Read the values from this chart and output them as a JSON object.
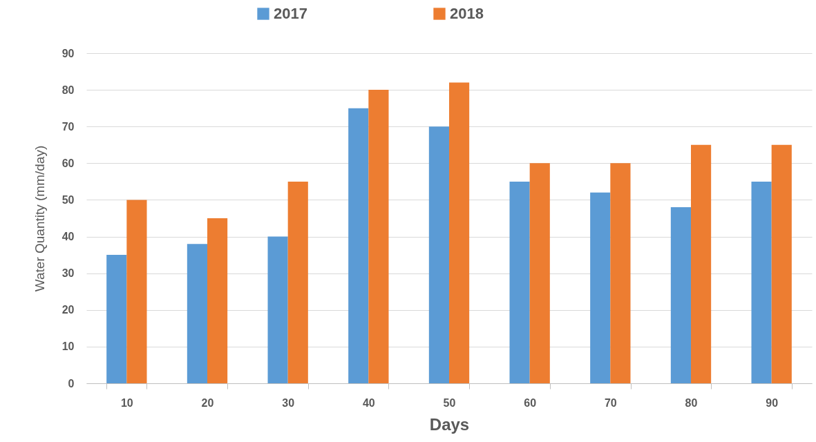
{
  "chart_data": {
    "type": "bar",
    "xlabel": "Days",
    "ylabel": "Water Quantity (mm/day)",
    "categories": [
      "10",
      "20",
      "30",
      "40",
      "50",
      "60",
      "70",
      "80",
      "90"
    ],
    "series": [
      {
        "name": "2017",
        "color": "#5b9bd5",
        "values": [
          35,
          38,
          40,
          75,
          70,
          55,
          52,
          48,
          55
        ]
      },
      {
        "name": "2018",
        "color": "#ed7d31",
        "values": [
          50,
          45,
          55,
          80,
          82,
          60,
          60,
          65,
          65
        ]
      }
    ],
    "ylim": [
      0,
      90
    ],
    "yticks": [
      0,
      10,
      20,
      30,
      40,
      50,
      60,
      70,
      80,
      90
    ],
    "grid": "y",
    "legend": "top"
  }
}
